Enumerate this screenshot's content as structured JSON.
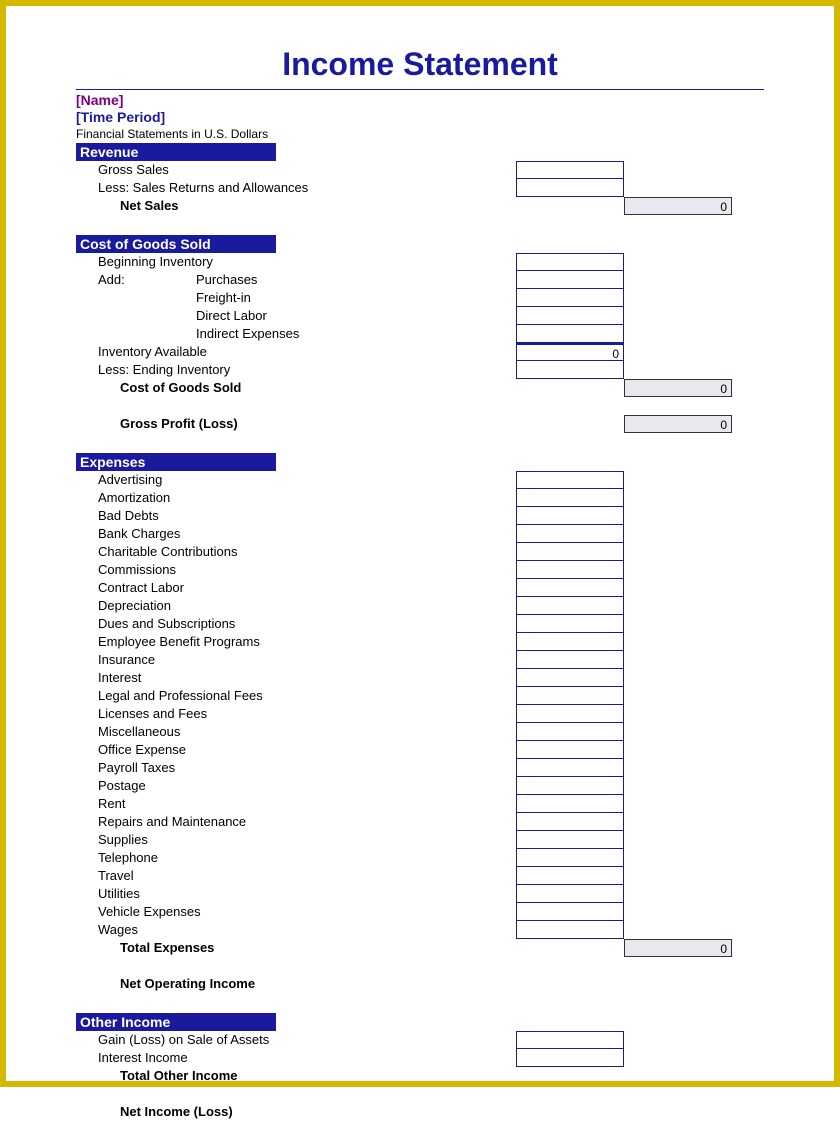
{
  "title": "Income Statement",
  "name_placeholder": "[Name]",
  "time_placeholder": "[Time Period]",
  "currency_note": "Financial Statements in U.S. Dollars",
  "colors": {
    "border": "#d4b800",
    "primary": "#1a1a9e",
    "name": "#800080",
    "total_bg": "#e8e8ef"
  },
  "sections": {
    "revenue": {
      "header": "Revenue",
      "rows": [
        {
          "label": "Gross Sales",
          "col": 1
        },
        {
          "label": "Less: Sales Returns and Allowances",
          "col": 1
        }
      ],
      "totals": [
        {
          "label": "Net Sales",
          "value": "0",
          "col": 2,
          "bold": true,
          "indent": 2
        }
      ]
    },
    "cogs": {
      "header": "Cost of Goods Sold",
      "rows": [
        {
          "label": "Beginning Inventory",
          "col": 1
        },
        {
          "label_left": "Add:",
          "label": "Purchases",
          "col": 1
        },
        {
          "label": "Freight-in",
          "col": 1,
          "sub": true
        },
        {
          "label": "Direct Labor",
          "col": 1,
          "sub": true
        },
        {
          "label": "Indirect Expenses",
          "col": 1,
          "sub": true
        },
        {
          "label": "Inventory Available",
          "col": 1,
          "value": "0",
          "thick": true
        },
        {
          "label": "Less: Ending Inventory",
          "col": 1
        }
      ],
      "totals": [
        {
          "label": "Cost of Goods Sold",
          "value": "0",
          "col": 2,
          "bold": true,
          "indent": 2
        },
        {
          "spacer": true
        },
        {
          "label": "Gross Profit (Loss)",
          "value": "0",
          "col": 2,
          "bold": true,
          "indent": 2
        }
      ]
    },
    "expenses": {
      "header": "Expenses",
      "rows": [
        {
          "label": "Advertising",
          "col": 1
        },
        {
          "label": "Amortization",
          "col": 1
        },
        {
          "label": "Bad Debts",
          "col": 1
        },
        {
          "label": "Bank Charges",
          "col": 1
        },
        {
          "label": "Charitable Contributions",
          "col": 1
        },
        {
          "label": "Commissions",
          "col": 1
        },
        {
          "label": "Contract Labor",
          "col": 1
        },
        {
          "label": "Depreciation",
          "col": 1
        },
        {
          "label": "Dues and Subscriptions",
          "col": 1
        },
        {
          "label": "Employee Benefit Programs",
          "col": 1
        },
        {
          "label": "Insurance",
          "col": 1
        },
        {
          "label": "Interest",
          "col": 1
        },
        {
          "label": "Legal and Professional Fees",
          "col": 1
        },
        {
          "label": "Licenses and Fees",
          "col": 1
        },
        {
          "label": "Miscellaneous",
          "col": 1
        },
        {
          "label": "Office Expense",
          "col": 1
        },
        {
          "label": "Payroll Taxes",
          "col": 1
        },
        {
          "label": "Postage",
          "col": 1
        },
        {
          "label": "Rent",
          "col": 1
        },
        {
          "label": "Repairs and Maintenance",
          "col": 1
        },
        {
          "label": "Supplies",
          "col": 1
        },
        {
          "label": "Telephone",
          "col": 1
        },
        {
          "label": "Travel",
          "col": 1
        },
        {
          "label": "Utilities",
          "col": 1
        },
        {
          "label": "Vehicle Expenses",
          "col": 1
        },
        {
          "label": "Wages",
          "col": 1
        }
      ],
      "totals": [
        {
          "label": "Total Expenses",
          "value": "0",
          "col": 2,
          "bold": true,
          "indent": 2
        },
        {
          "spacer": true
        },
        {
          "label": "Net Operating Income",
          "value": "",
          "col": 2,
          "bold": true,
          "indent": 2,
          "noline": true
        }
      ]
    },
    "other": {
      "header": "Other Income",
      "rows": [
        {
          "label": "Gain (Loss) on Sale of Assets",
          "col": 1
        },
        {
          "label": "Interest Income",
          "col": 1
        }
      ],
      "totals": [
        {
          "label": "Total Other Income",
          "value": "",
          "col": 2,
          "bold": true,
          "indent": 2,
          "noline": true
        },
        {
          "spacer": true
        },
        {
          "label": "Net Income (Loss)",
          "value": "",
          "col": 2,
          "bold": true,
          "indent": 2,
          "noline": true
        }
      ]
    }
  }
}
